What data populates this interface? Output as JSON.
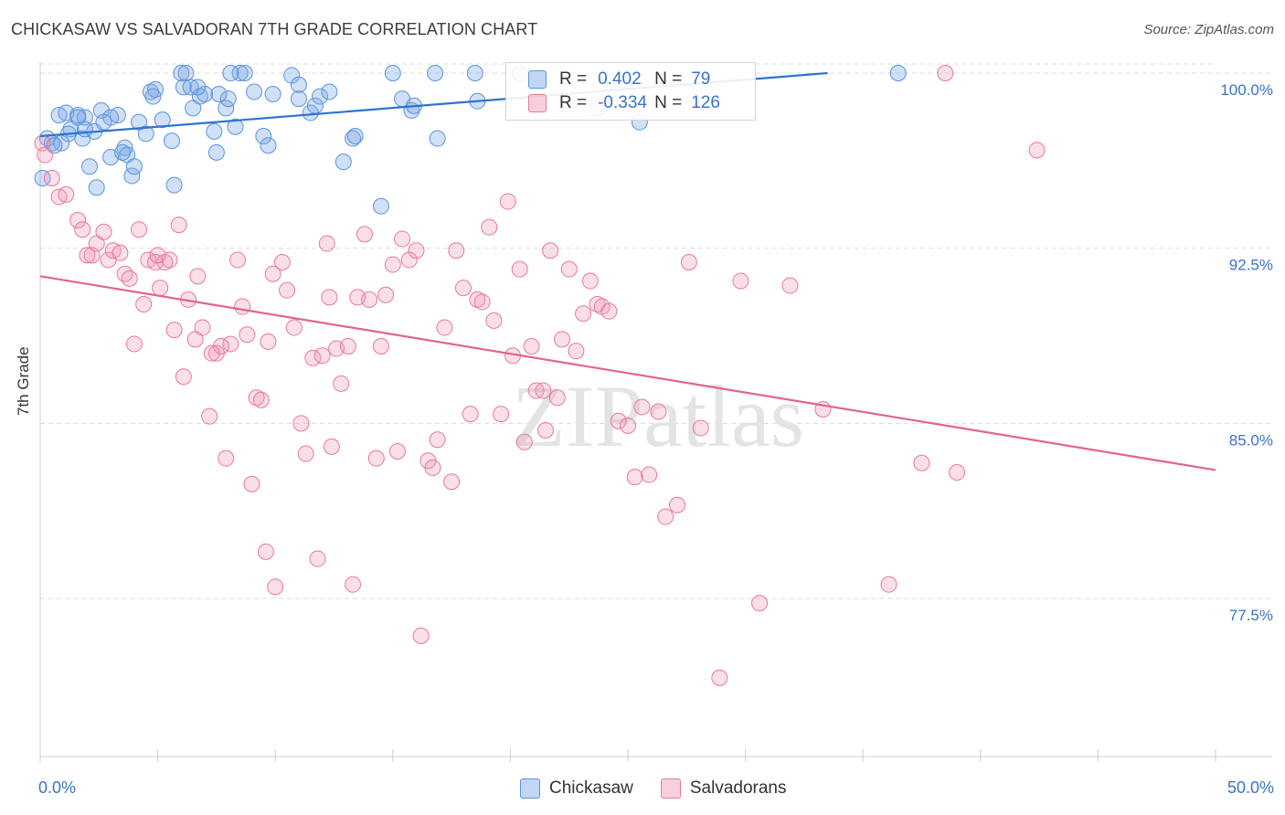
{
  "title": "CHICKASAW VS SALVADORAN 7TH GRADE CORRELATION CHART",
  "source": "Source: ZipAtlas.com",
  "watermark": "ZIPatlas",
  "colors": {
    "blue": "#5b93dc",
    "blue_fill": "rgba(120,165,230,0.35)",
    "blue_line": "#2f73d0",
    "pink": "#e8789e",
    "pink_fill": "rgba(240,150,180,0.30)",
    "pink_line": "#e2648d",
    "grid": "#dcdcdc",
    "tick_text": "#3a73c8"
  },
  "legend": {
    "rows": [
      {
        "r_label": "R =",
        "r_value": "0.402",
        "n_label": "N =",
        "n_value": "79"
      },
      {
        "r_label": "R =",
        "r_value": "-0.334",
        "n_label": "N =",
        "n_value": "126"
      }
    ]
  },
  "bottom_legend": [
    "Chickasaw",
    "Salvadorans"
  ],
  "axis": {
    "ylabel": "7th Grade",
    "x_min_label": "0.0%",
    "x_max_label": "50.0%",
    "y_ticks": [
      "100.0%",
      "92.5%",
      "85.0%",
      "77.5%"
    ]
  },
  "chart_data": {
    "type": "scatter",
    "title": "CHICKASAW VS SALVADORAN 7TH GRADE CORRELATION CHART",
    "xlabel": "",
    "ylabel": "7th Grade",
    "xlim": [
      0,
      50
    ],
    "ylim": [
      71,
      100.7
    ],
    "y_ticks": [
      100,
      92.5,
      85,
      77.5
    ],
    "grid": true,
    "legend_placement": "top-center",
    "series": [
      {
        "name": "Chickasaw",
        "color": "#5b93dc",
        "trend": {
          "x": [
            0,
            33.5
          ],
          "y": [
            97.3,
            100.0
          ]
        },
        "points": [
          [
            0.1,
            95.5
          ],
          [
            0.3,
            97.2
          ],
          [
            0.5,
            97.0
          ],
          [
            0.8,
            98.2
          ],
          [
            0.9,
            97.0
          ],
          [
            1.1,
            98.3
          ],
          [
            1.3,
            97.6
          ],
          [
            1.6,
            98.2
          ],
          [
            1.8,
            97.2
          ],
          [
            1.9,
            98.1
          ],
          [
            2.3,
            97.5
          ],
          [
            2.6,
            98.4
          ],
          [
            2.7,
            97.9
          ],
          [
            3.0,
            96.4
          ],
          [
            3.3,
            98.2
          ],
          [
            3.6,
            96.8
          ],
          [
            3.7,
            96.5
          ],
          [
            3.9,
            95.6
          ],
          [
            4.0,
            96.0
          ],
          [
            4.2,
            97.9
          ],
          [
            4.5,
            97.4
          ],
          [
            4.7,
            99.2
          ],
          [
            4.9,
            99.3
          ],
          [
            5.2,
            98.0
          ],
          [
            5.6,
            97.1
          ],
          [
            6.0,
            100.0
          ],
          [
            6.1,
            99.4
          ],
          [
            6.2,
            100.0
          ],
          [
            6.4,
            99.4
          ],
          [
            6.5,
            98.5
          ],
          [
            6.8,
            99.0
          ],
          [
            7.0,
            99.1
          ],
          [
            7.4,
            97.5
          ],
          [
            7.5,
            96.6
          ],
          [
            7.9,
            98.5
          ],
          [
            8.0,
            98.9
          ],
          [
            8.3,
            97.7
          ],
          [
            8.5,
            100.0
          ],
          [
            8.7,
            100.0
          ],
          [
            9.1,
            99.2
          ],
          [
            9.5,
            97.3
          ],
          [
            9.7,
            96.9
          ],
          [
            9.9,
            99.1
          ],
          [
            10.7,
            99.9
          ],
          [
            11.0,
            99.5
          ],
          [
            11.0,
            98.9
          ],
          [
            11.5,
            98.3
          ],
          [
            11.7,
            98.6
          ],
          [
            11.9,
            99.0
          ],
          [
            12.3,
            99.2
          ],
          [
            12.9,
            96.2
          ],
          [
            13.3,
            97.2
          ],
          [
            13.4,
            97.3
          ],
          [
            14.5,
            94.3
          ],
          [
            15.0,
            100.0
          ],
          [
            15.4,
            98.9
          ],
          [
            15.8,
            98.4
          ],
          [
            15.9,
            98.6
          ],
          [
            16.8,
            100.0
          ],
          [
            16.9,
            97.2
          ],
          [
            18.5,
            100.0
          ],
          [
            18.6,
            98.8
          ],
          [
            20.4,
            100.0
          ],
          [
            23.7,
            98.5
          ],
          [
            25.5,
            97.9
          ],
          [
            36.5,
            100.0
          ],
          [
            1.6,
            98.1
          ],
          [
            1.2,
            97.4
          ],
          [
            2.4,
            95.1
          ],
          [
            3.5,
            96.6
          ],
          [
            5.7,
            95.2
          ],
          [
            4.8,
            99.0
          ],
          [
            7.6,
            99.1
          ],
          [
            8.1,
            100.0
          ],
          [
            0.6,
            96.9
          ],
          [
            2.1,
            96.0
          ],
          [
            1.9,
            97.6
          ],
          [
            3.0,
            98.1
          ],
          [
            6.7,
            99.4
          ]
        ]
      },
      {
        "name": "Salvadorans",
        "color": "#e8789e",
        "trend": {
          "x": [
            0,
            50
          ],
          "y": [
            91.3,
            83.0
          ]
        },
        "points": [
          [
            0.1,
            97.0
          ],
          [
            0.2,
            96.5
          ],
          [
            0.5,
            95.5
          ],
          [
            0.8,
            94.7
          ],
          [
            1.1,
            94.8
          ],
          [
            1.6,
            93.7
          ],
          [
            1.8,
            93.3
          ],
          [
            2.0,
            92.2
          ],
          [
            2.2,
            92.2
          ],
          [
            2.4,
            92.7
          ],
          [
            2.7,
            93.2
          ],
          [
            2.9,
            92.0
          ],
          [
            3.1,
            92.4
          ],
          [
            3.4,
            92.3
          ],
          [
            3.6,
            91.4
          ],
          [
            3.8,
            91.2
          ],
          [
            4.0,
            88.4
          ],
          [
            4.2,
            93.3
          ],
          [
            4.4,
            90.1
          ],
          [
            4.6,
            92.0
          ],
          [
            4.9,
            91.9
          ],
          [
            5.1,
            90.8
          ],
          [
            5.3,
            91.9
          ],
          [
            5.5,
            92.0
          ],
          [
            5.7,
            89.0
          ],
          [
            5.9,
            93.5
          ],
          [
            6.1,
            87.0
          ],
          [
            6.3,
            90.3
          ],
          [
            6.6,
            88.6
          ],
          [
            6.7,
            91.3
          ],
          [
            6.9,
            89.1
          ],
          [
            7.2,
            85.3
          ],
          [
            7.5,
            88.0
          ],
          [
            7.7,
            88.3
          ],
          [
            7.9,
            83.5
          ],
          [
            8.1,
            88.4
          ],
          [
            8.4,
            92.0
          ],
          [
            8.6,
            90.0
          ],
          [
            8.8,
            88.8
          ],
          [
            9.0,
            82.4
          ],
          [
            9.2,
            86.1
          ],
          [
            9.4,
            86.0
          ],
          [
            9.7,
            88.5
          ],
          [
            9.9,
            91.4
          ],
          [
            10.0,
            78.0
          ],
          [
            10.3,
            91.9
          ],
          [
            10.5,
            90.7
          ],
          [
            10.8,
            89.1
          ],
          [
            11.1,
            85.0
          ],
          [
            11.3,
            83.7
          ],
          [
            11.6,
            87.8
          ],
          [
            11.8,
            79.2
          ],
          [
            12.0,
            87.9
          ],
          [
            12.2,
            92.7
          ],
          [
            12.4,
            84.0
          ],
          [
            12.6,
            88.2
          ],
          [
            12.8,
            86.7
          ],
          [
            13.1,
            88.3
          ],
          [
            13.3,
            78.1
          ],
          [
            13.5,
            90.4
          ],
          [
            13.8,
            93.1
          ],
          [
            14.0,
            90.3
          ],
          [
            14.3,
            83.5
          ],
          [
            14.5,
            88.3
          ],
          [
            14.7,
            90.5
          ],
          [
            15.0,
            91.8
          ],
          [
            15.2,
            83.8
          ],
          [
            15.4,
            92.9
          ],
          [
            15.7,
            92.0
          ],
          [
            16.0,
            92.4
          ],
          [
            16.2,
            75.9
          ],
          [
            16.5,
            83.4
          ],
          [
            16.7,
            83.1
          ],
          [
            16.9,
            84.3
          ],
          [
            17.2,
            89.1
          ],
          [
            17.5,
            82.5
          ],
          [
            17.7,
            92.4
          ],
          [
            18.0,
            90.8
          ],
          [
            18.3,
            85.4
          ],
          [
            18.6,
            90.3
          ],
          [
            18.8,
            90.2
          ],
          [
            19.1,
            93.4
          ],
          [
            19.3,
            89.4
          ],
          [
            19.6,
            85.4
          ],
          [
            19.9,
            94.5
          ],
          [
            20.1,
            87.9
          ],
          [
            20.4,
            91.6
          ],
          [
            20.6,
            84.2
          ],
          [
            20.9,
            88.3
          ],
          [
            21.1,
            86.4
          ],
          [
            21.4,
            86.4
          ],
          [
            21.7,
            92.4
          ],
          [
            22.0,
            86.1
          ],
          [
            22.2,
            88.6
          ],
          [
            22.5,
            91.6
          ],
          [
            22.8,
            88.1
          ],
          [
            23.1,
            89.7
          ],
          [
            23.4,
            91.1
          ],
          [
            23.7,
            90.1
          ],
          [
            23.9,
            90.0
          ],
          [
            24.2,
            89.8
          ],
          [
            24.6,
            85.1
          ],
          [
            25.0,
            84.9
          ],
          [
            25.3,
            82.7
          ],
          [
            25.6,
            85.7
          ],
          [
            25.9,
            82.8
          ],
          [
            26.3,
            85.5
          ],
          [
            26.6,
            81.0
          ],
          [
            27.1,
            81.5
          ],
          [
            27.6,
            91.9
          ],
          [
            28.1,
            84.8
          ],
          [
            28.9,
            74.1
          ],
          [
            29.8,
            91.1
          ],
          [
            30.6,
            77.3
          ],
          [
            31.9,
            90.9
          ],
          [
            33.3,
            85.6
          ],
          [
            36.1,
            78.1
          ],
          [
            37.5,
            83.3
          ],
          [
            38.5,
            100.0
          ],
          [
            39.0,
            82.9
          ],
          [
            42.4,
            96.7
          ],
          [
            21.5,
            84.7
          ],
          [
            7.3,
            88.0
          ],
          [
            5.0,
            92.2
          ],
          [
            9.6,
            79.5
          ],
          [
            12.3,
            90.4
          ]
        ]
      }
    ]
  }
}
